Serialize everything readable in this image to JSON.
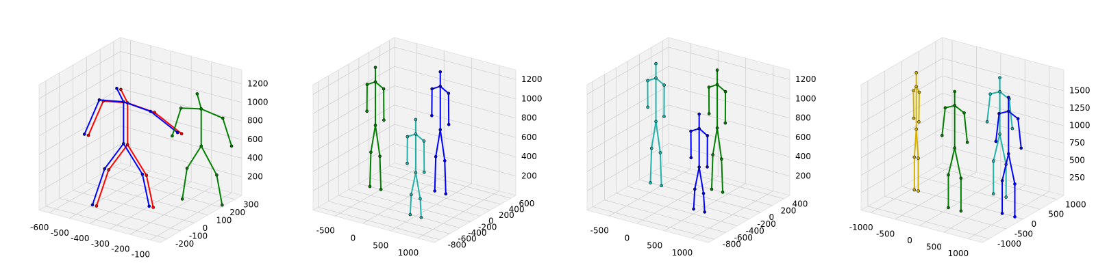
{
  "chart_data": [
    {
      "type": "skeleton3d",
      "xlim": [
        -650,
        -50
      ],
      "xticks": [
        -600,
        -500,
        -400,
        -300,
        -200,
        -100
      ],
      "ylim": [
        -250,
        350
      ],
      "yticks": [
        -200,
        -100,
        0,
        100,
        200,
        300
      ],
      "zlim": [
        0,
        1350
      ],
      "zticks": [
        200,
        400,
        600,
        800,
        1000,
        1200
      ],
      "series": [
        {
          "color": "#ff0000",
          "joints": [
            [
              -400,
              -20,
              1250
            ],
            [
              -380,
              0,
              1100
            ],
            [
              -500,
              0,
              1050
            ],
            [
              -540,
              -50,
              700
            ],
            [
              -260,
              20,
              1050
            ],
            [
              -180,
              100,
              800
            ],
            [
              -380,
              0,
              650
            ],
            [
              -460,
              -20,
              350
            ],
            [
              -480,
              -80,
              0
            ],
            [
              -300,
              20,
              350
            ],
            [
              -280,
              40,
              0
            ]
          ]
        },
        {
          "color": "#0000ff",
          "joints": [
            [
              -420,
              -20,
              1250
            ],
            [
              -400,
              0,
              1100
            ],
            [
              -520,
              0,
              1050
            ],
            [
              -560,
              -50,
              700
            ],
            [
              -280,
              20,
              1050
            ],
            [
              -200,
              100,
              800
            ],
            [
              -400,
              0,
              650
            ],
            [
              -480,
              -20,
              350
            ],
            [
              -500,
              -80,
              0
            ],
            [
              -320,
              20,
              350
            ],
            [
              -300,
              40,
              0
            ]
          ]
        },
        {
          "color": "#008000",
          "joints": [
            [
              -170,
              200,
              1150
            ],
            [
              -150,
              200,
              1000
            ],
            [
              -250,
              200,
              950
            ],
            [
              -280,
              180,
              650
            ],
            [
              -50,
              210,
              950
            ],
            [
              -20,
              230,
              650
            ],
            [
              -150,
              200,
              600
            ],
            [
              -220,
              200,
              320
            ],
            [
              -230,
              180,
              0
            ],
            [
              -80,
              210,
              320
            ],
            [
              -60,
              220,
              0
            ]
          ]
        }
      ]
    },
    {
      "type": "skeleton3d",
      "xlim": [
        -900,
        1300
      ],
      "xticks": [
        -500,
        0,
        500,
        1000
      ],
      "ylim": [
        -900,
        700
      ],
      "yticks": [
        -800,
        -600,
        -400,
        -200,
        0,
        200,
        400,
        600
      ],
      "zlim": [
        0,
        1300
      ],
      "zticks": [
        200,
        400,
        600,
        800,
        1000,
        1200
      ],
      "series": [
        {
          "color": "#008000",
          "joints": [
            [
              -600,
              0,
              1250
            ],
            [
              -600,
              0,
              1100
            ],
            [
              -750,
              0,
              1050
            ],
            [
              -800,
              50,
              750
            ],
            [
              -450,
              0,
              1050
            ],
            [
              -400,
              -50,
              750
            ],
            [
              -600,
              0,
              650
            ],
            [
              -700,
              20,
              350
            ],
            [
              -700,
              0,
              0
            ],
            [
              -500,
              -20,
              350
            ],
            [
              -500,
              0,
              0
            ]
          ]
        },
        {
          "color": "#0000ff",
          "joints": [
            [
              300,
              300,
              1250
            ],
            [
              300,
              300,
              1100
            ],
            [
              150,
              300,
              1050
            ],
            [
              100,
              350,
              750
            ],
            [
              450,
              300,
              1050
            ],
            [
              500,
              250,
              750
            ],
            [
              300,
              300,
              650
            ],
            [
              200,
              320,
              350
            ],
            [
              200,
              300,
              0
            ],
            [
              400,
              280,
              350
            ],
            [
              400,
              300,
              0
            ]
          ]
        },
        {
          "color": "#20b2aa",
          "joints": [
            [
              500,
              -400,
              1000
            ],
            [
              500,
              -400,
              850
            ],
            [
              350,
              -400,
              800
            ],
            [
              300,
              -350,
              500
            ],
            [
              650,
              -400,
              800
            ],
            [
              700,
              -450,
              500
            ],
            [
              500,
              -400,
              450
            ],
            [
              400,
              -380,
              200
            ],
            [
              400,
              -400,
              0
            ],
            [
              600,
              -420,
              200
            ],
            [
              600,
              -400,
              0
            ]
          ]
        }
      ]
    },
    {
      "type": "skeleton3d",
      "xlim": [
        -900,
        1300
      ],
      "xticks": [
        -500,
        0,
        500,
        1000
      ],
      "ylim": [
        -900,
        500
      ],
      "yticks": [
        -800,
        -600,
        -400,
        -200,
        0,
        200,
        400
      ],
      "zlim": [
        0,
        1300
      ],
      "zticks": [
        200,
        400,
        600,
        800,
        1000,
        1200
      ],
      "series": [
        {
          "color": "#20b2aa",
          "joints": [
            [
              -600,
              0,
              1250
            ],
            [
              -600,
              0,
              1100
            ],
            [
              -750,
              0,
              1050
            ],
            [
              -800,
              50,
              750
            ],
            [
              -450,
              0,
              1050
            ],
            [
              -400,
              -50,
              750
            ],
            [
              -600,
              0,
              650
            ],
            [
              -700,
              20,
              350
            ],
            [
              -700,
              0,
              0
            ],
            [
              -500,
              -20,
              350
            ],
            [
              -500,
              0,
              0
            ]
          ]
        },
        {
          "color": "#008000",
          "joints": [
            [
              300,
              200,
              1250
            ],
            [
              300,
              200,
              1100
            ],
            [
              150,
              200,
              1050
            ],
            [
              100,
              250,
              750
            ],
            [
              450,
              200,
              1050
            ],
            [
              500,
              150,
              750
            ],
            [
              300,
              200,
              650
            ],
            [
              200,
              220,
              350
            ],
            [
              200,
              200,
              0
            ],
            [
              400,
              180,
              350
            ],
            [
              400,
              200,
              0
            ]
          ]
        },
        {
          "color": "#0000ff",
          "joints": [
            [
              500,
              -300,
              1000
            ],
            [
              500,
              -300,
              850
            ],
            [
              350,
              -300,
              800
            ],
            [
              300,
              -250,
              500
            ],
            [
              650,
              -300,
              800
            ],
            [
              700,
              -350,
              500
            ],
            [
              500,
              -300,
              450
            ],
            [
              400,
              -280,
              200
            ],
            [
              400,
              -300,
              0
            ],
            [
              600,
              -320,
              200
            ],
            [
              600,
              -300,
              0
            ]
          ]
        }
      ]
    },
    {
      "type": "skeleton3d",
      "xlim": [
        -1200,
        1300
      ],
      "xticks": [
        -1000,
        -500,
        0,
        500,
        1000
      ],
      "ylim": [
        -1200,
        1200
      ],
      "yticks": [
        -1000,
        -500,
        0,
        500,
        1000
      ],
      "zlim": [
        0,
        1800
      ],
      "zticks": [
        250,
        500,
        750,
        1000,
        1250,
        1500
      ],
      "series": [
        {
          "color": "#d4b000",
          "joints": [
            [
              -900,
              0,
              1690
            ],
            [
              -900,
              0,
              1490
            ],
            [
              -960,
              0,
              1420
            ],
            [
              -980,
              40,
              1010
            ],
            [
              -840,
              0,
              1420
            ],
            [
              -820,
              -40,
              1010
            ],
            [
              -900,
              0,
              880
            ],
            [
              -940,
              0,
              470
            ],
            [
              -940,
              0,
              0
            ],
            [
              -860,
              0,
              470
            ],
            [
              -860,
              0,
              0
            ]
          ]
        },
        {
          "color": "#20b2aa",
          "joints": [
            [
              400,
              600,
              1690
            ],
            [
              400,
              600,
              1490
            ],
            [
              205,
              600,
              1420
            ],
            [
              140,
              600,
              1010
            ],
            [
              595,
              600,
              1420
            ],
            [
              660,
              600,
              1010
            ],
            [
              400,
              600,
              880
            ],
            [
              270,
              600,
              470
            ],
            [
              270,
              600,
              0
            ],
            [
              530,
              600,
              470
            ],
            [
              530,
              600,
              0
            ]
          ]
        },
        {
          "color": "#008000",
          "joints": [
            [
              100,
              -300,
              1690
            ],
            [
              100,
              -300,
              1490
            ],
            [
              -95,
              -300,
              1420
            ],
            [
              -160,
              -300,
              1010
            ],
            [
              295,
              -300,
              1420
            ],
            [
              360,
              -300,
              1010
            ],
            [
              100,
              -300,
              880
            ],
            [
              -30,
              -300,
              470
            ],
            [
              -30,
              -300,
              0
            ],
            [
              230,
              -300,
              470
            ],
            [
              230,
              -300,
              0
            ]
          ]
        },
        {
          "color": "#0000ff",
          "joints": [
            [
              1000,
              0,
              1690
            ],
            [
              1000,
              0,
              1490
            ],
            [
              805,
              0,
              1420
            ],
            [
              740,
              0,
              1010
            ],
            [
              1195,
              0,
              1420
            ],
            [
              1260,
              0,
              1010
            ],
            [
              1000,
              0,
              880
            ],
            [
              870,
              0,
              470
            ],
            [
              870,
              0,
              0
            ],
            [
              1130,
              0,
              470
            ],
            [
              1130,
              0,
              0
            ]
          ]
        }
      ]
    }
  ]
}
